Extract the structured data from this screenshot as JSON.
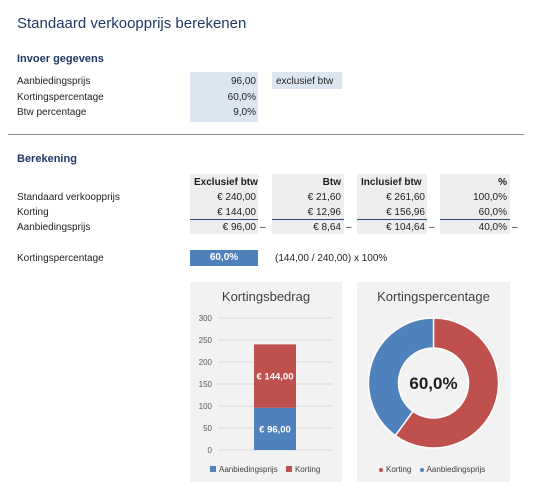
{
  "title": "Standaard verkoopprijs berekenen",
  "input": {
    "section_title": "Invoer gegevens",
    "rows": [
      {
        "label": "Aanbiedingsprijs",
        "value": "96,00"
      },
      {
        "label": "Kortingspercentage",
        "value": "60,0%"
      },
      {
        "label": "Btw percentage",
        "value": "9,0%"
      }
    ],
    "note": "exclusief btw"
  },
  "calc": {
    "section_title": "Berekening",
    "headers": [
      "Exclusief btw",
      "Btw",
      "Inclusief btw",
      "%"
    ],
    "rows": [
      {
        "label": "Standaard verkoopprijs",
        "values": [
          "€ 240,00",
          "€ 21,60",
          "€ 261,60",
          "100,0%"
        ]
      },
      {
        "label": "Korting",
        "values": [
          "€ 144,00",
          "€ 12,96",
          "€ 156,96",
          "60,0%"
        ]
      },
      {
        "label": "Aanbiedingsprijs",
        "values": [
          "€ 96,00",
          "€ 8,64",
          "€ 104,64",
          "40,0%"
        ]
      }
    ],
    "minus_sign": "–",
    "pct_label": "Kortingspercentage",
    "pct_value": "60,0%",
    "pct_formula": "(144,00 / 240,00) x 100%"
  },
  "colors": {
    "blue": "#4f81bd",
    "red": "#c0504d",
    "input_fill": "#dce6f1",
    "title": "#1f3864"
  },
  "chart_data": [
    {
      "type": "bar",
      "stacked": true,
      "title": "Kortingsbedrag",
      "categories": [
        ""
      ],
      "series": [
        {
          "name": "Aanbiedingsprijs",
          "values": [
            96
          ],
          "label": "€ 96,00",
          "color": "#4f81bd"
        },
        {
          "name": "Korting",
          "values": [
            144
          ],
          "label": "€ 144,00",
          "color": "#c0504d"
        }
      ],
      "ylim": [
        0,
        300
      ],
      "yticks": [
        "0",
        "50",
        "100",
        "150",
        "200",
        "250",
        "300"
      ],
      "grid": true,
      "legend": "bottom"
    },
    {
      "type": "pie",
      "donut": true,
      "title": "Kortingspercentage",
      "slices": [
        {
          "name": "Korting",
          "value": 60,
          "color": "#c0504d"
        },
        {
          "name": "Aanbiedingsprijs",
          "value": 40,
          "color": "#4f81bd"
        }
      ],
      "center_label": "60,0%",
      "legend": "bottom"
    }
  ]
}
